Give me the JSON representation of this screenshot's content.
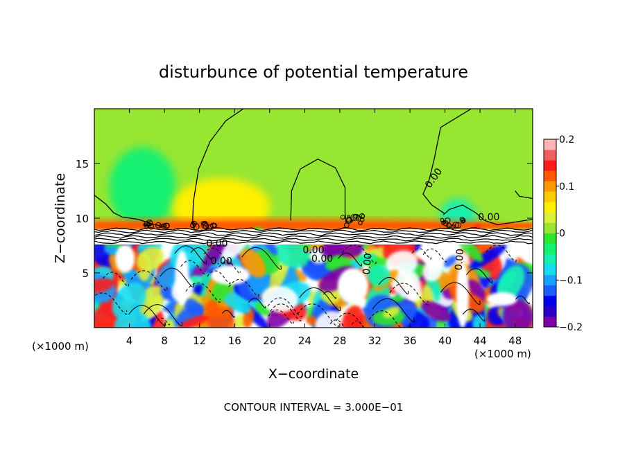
{
  "chart_data": {
    "type": "heatmap",
    "title": "disturbunce of potential temperature",
    "xlabel": "X−coordinate",
    "ylabel": "Z−coordinate",
    "x_unit_left": "(×1000 m)",
    "x_unit_right": "(×1000 m)",
    "footer": "CONTOUR INTERVAL = 3.000E−01",
    "xlim": [
      0,
      50
    ],
    "ylim": [
      0,
      20
    ],
    "x_ticks": [
      4,
      8,
      12,
      16,
      20,
      24,
      28,
      32,
      36,
      40,
      44,
      48
    ],
    "x_tick_labels": [
      "4",
      "8",
      "12",
      "16",
      "20",
      "24",
      "28",
      "32",
      "36",
      "40",
      "44",
      "48"
    ],
    "y_ticks": [
      5,
      10,
      15
    ],
    "y_tick_labels": [
      "5",
      "10",
      "15"
    ],
    "colorbar": {
      "range": [
        -0.2,
        0.2
      ],
      "ticks": [
        -0.2,
        -0.1,
        0,
        0.1,
        0.2
      ],
      "tick_labels": [
        "−0.2",
        "−0.1",
        "0",
        "0.1",
        "0.2"
      ],
      "colors": [
        "#7f00a8",
        "#2a00c8",
        "#0000f0",
        "#1d5cff",
        "#19a0ff",
        "#14ddf0",
        "#14f0b0",
        "#14f070",
        "#2ee62e",
        "#96e632",
        "#dcf03c",
        "#fff000",
        "#ffcc00",
        "#ff9900",
        "#ff5a00",
        "#ff1a1a",
        "#f06060",
        "#ffb4b4"
      ]
    },
    "background_value": 0,
    "regions": [
      {
        "x": 5.5,
        "z": 12.8,
        "value": -0.03
      },
      {
        "x": 14.5,
        "z": 11.0,
        "value": 0.05
      },
      {
        "x": 25.5,
        "z": 12.0,
        "value": 0.01
      },
      {
        "x": 41.5,
        "z": 10.0,
        "value": -0.06
      },
      {
        "x": 20.0,
        "z": 9.3,
        "value": 0.12
      }
    ],
    "contour_labels": [
      {
        "text": "0.00",
        "x": 39.0,
        "z": 13.5
      },
      {
        "text": "0.00",
        "x": 45.0,
        "z": 9.8
      },
      {
        "text": "0.00",
        "x": 14.0,
        "z": 7.4
      },
      {
        "text": "0.00",
        "x": 14.5,
        "z": 5.8
      },
      {
        "text": "0.00",
        "x": 25.0,
        "z": 6.8
      },
      {
        "text": "0.00",
        "x": 26.0,
        "z": 6.0
      },
      {
        "text": "0.00",
        "x": 31.5,
        "z": 5.8
      },
      {
        "text": "0.00",
        "x": 42.0,
        "z": 6.2
      }
    ]
  }
}
